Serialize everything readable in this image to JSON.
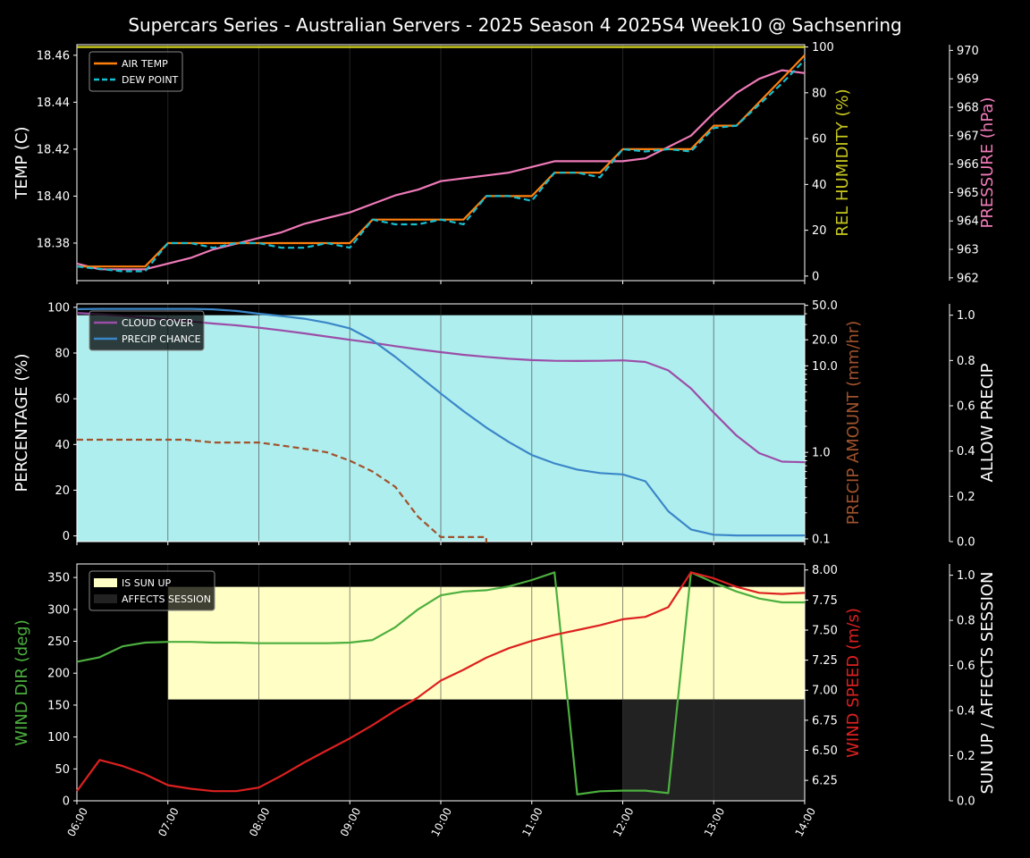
{
  "title": "Supercars Series - Australian Servers - 2025 Season 4 2025S4 Week10 @ Sachsenring",
  "x_ticks": [
    "06:00",
    "07:00",
    "08:00",
    "09:00",
    "10:00",
    "11:00",
    "12:00",
    "13:00",
    "14:00"
  ],
  "colors": {
    "air_temp": "#ff7f0e",
    "dew_point": "#17becf",
    "humidity_line": "#d4d41c",
    "humidity_label": "#c8c820",
    "pressure": "#f07ab8",
    "cloud_cover": "#9b4ea8",
    "precip_chance": "#3a86c8",
    "precip_amount": "#a0522d",
    "allow_precip_fill": "#afeeee",
    "sun_up_fill": "#ffffc5",
    "affects_fill": "#222222",
    "wind_dir": "#4caf3f",
    "wind_speed": "#dd2020"
  },
  "chart_data": [
    {
      "type": "line",
      "panel": "temperature",
      "ylabel": "TEMP (C)",
      "ylim": [
        18.364,
        18.4645
      ],
      "y_ticks": [
        "18.38",
        "18.40",
        "18.42",
        "18.44",
        "18.46"
      ],
      "right_axes": [
        {
          "label": "REL HUMIDITY (%)",
          "ylim": [
            -2,
            101
          ],
          "ticks": [
            "0",
            "20",
            "40",
            "60",
            "80",
            "100"
          ]
        },
        {
          "label": "PRESSURE (hPa)",
          "ylim": [
            961.9,
            970.2
          ],
          "ticks": [
            "962",
            "963",
            "964",
            "965",
            "966",
            "967",
            "968",
            "969",
            "970"
          ]
        }
      ],
      "legend": [
        "AIR TEMP",
        "DEW POINT"
      ],
      "legend_position": "top-left",
      "x_hours": [
        6.0,
        6.25,
        6.5,
        6.75,
        7.0,
        7.25,
        7.5,
        7.75,
        8.0,
        8.25,
        8.5,
        8.75,
        9.0,
        9.25,
        9.5,
        9.75,
        10.0,
        10.25,
        10.5,
        10.75,
        11.0,
        11.25,
        11.5,
        11.75,
        12.0,
        12.25,
        12.5,
        12.75,
        13.0,
        13.25,
        13.5,
        13.75,
        14.0
      ],
      "series": [
        {
          "name": "AIR TEMP",
          "values": [
            18.37,
            18.37,
            18.37,
            18.37,
            18.38,
            18.38,
            18.38,
            18.38,
            18.38,
            18.38,
            18.38,
            18.38,
            18.38,
            18.39,
            18.39,
            18.39,
            18.39,
            18.39,
            18.4,
            18.4,
            18.4,
            18.41,
            18.41,
            18.41,
            18.42,
            18.42,
            18.42,
            18.42,
            18.43,
            18.43,
            18.44,
            18.45,
            18.46
          ]
        },
        {
          "name": "DEW POINT",
          "values": [
            18.37,
            18.369,
            18.368,
            18.368,
            18.38,
            18.38,
            18.378,
            18.38,
            18.38,
            18.378,
            18.378,
            18.38,
            18.378,
            18.39,
            18.388,
            18.388,
            18.39,
            18.388,
            18.4,
            18.4,
            18.398,
            18.41,
            18.41,
            18.408,
            18.42,
            18.419,
            18.42,
            18.419,
            18.429,
            18.43,
            18.439,
            18.448,
            18.458
          ]
        },
        {
          "name": "REL HUMIDITY",
          "values": [
            100,
            100,
            100,
            100,
            100,
            100,
            100,
            100,
            100,
            100,
            100,
            100,
            100,
            100,
            100,
            100,
            100,
            100,
            100,
            100,
            100,
            100,
            100,
            100,
            100,
            100,
            100,
            100,
            100,
            100,
            100,
            100,
            100
          ]
        },
        {
          "name": "PRESSURE",
          "values": [
            962.5,
            962.3,
            962.3,
            962.3,
            962.5,
            962.7,
            963.0,
            963.2,
            963.4,
            963.6,
            963.9,
            964.1,
            964.3,
            964.6,
            964.9,
            965.1,
            965.4,
            965.5,
            965.6,
            965.7,
            965.9,
            966.1,
            966.1,
            966.1,
            966.1,
            966.2,
            966.6,
            967.0,
            967.8,
            968.5,
            969.0,
            969.3,
            969.2
          ]
        }
      ]
    },
    {
      "type": "line",
      "panel": "precipitation",
      "ylabel": "PERCENTAGE (%)",
      "ylim": [
        -2.5,
        101.5
      ],
      "y_ticks": [
        "0",
        "20",
        "40",
        "60",
        "80",
        "100"
      ],
      "right_axes": [
        {
          "label": "PRECIP AMOUNT (mm/hr)",
          "scale": "log",
          "ylim": [
            0.093,
            52
          ],
          "ticks": [
            "0.1",
            "1.0",
            "10.0",
            "20.0",
            "50.0"
          ]
        },
        {
          "label": "ALLOW PRECIP",
          "ylim": [
            0,
            1.05
          ],
          "ticks": [
            "0.0",
            "0.2",
            "0.4",
            "0.6",
            "0.8",
            "1.0"
          ]
        }
      ],
      "legend": [
        "CLOUD COVER",
        "PRECIP CHANCE"
      ],
      "legend_position": "top-left",
      "allow_precip": 1,
      "x_hours": [
        6.0,
        6.25,
        6.5,
        6.75,
        7.0,
        7.25,
        7.5,
        7.75,
        8.0,
        8.25,
        8.5,
        8.75,
        9.0,
        9.25,
        9.5,
        9.75,
        10.0,
        10.25,
        10.5,
        10.75,
        11.0,
        11.25,
        11.5,
        11.75,
        12.0,
        12.25,
        12.5,
        12.75,
        13.0,
        13.25,
        13.5,
        13.75,
        14.0
      ],
      "series": [
        {
          "name": "CLOUD COVER",
          "values": [
            97.5,
            97.0,
            96.3,
            95.5,
            94.7,
            93.8,
            92.9,
            92.1,
            91.1,
            89.9,
            88.6,
            87.2,
            85.8,
            84.5,
            83.0,
            81.6,
            80.4,
            79.2,
            78.3,
            77.5,
            76.9,
            76.6,
            76.5,
            76.6,
            76.8,
            76.1,
            72.4,
            64.5,
            53.9,
            43.9,
            36.2,
            32.5,
            32.2
          ]
        },
        {
          "name": "PRECIP CHANCE",
          "values": [
            99.2,
            99.3,
            99.3,
            99.3,
            99.3,
            99.3,
            99.1,
            98.4,
            97.2,
            96.2,
            95.0,
            93.2,
            90.8,
            85.5,
            78.3,
            70.3,
            62.3,
            54.6,
            47.4,
            41.0,
            35.4,
            31.7,
            29.0,
            27.5,
            26.9,
            23.9,
            10.8,
            2.8,
            0.5,
            0.2,
            0.2,
            0.2,
            0.2
          ]
        },
        {
          "name": "PRECIP AMOUNT",
          "x_hours": [
            6.0,
            6.25,
            6.5,
            6.75,
            7.0,
            7.2,
            7.5,
            7.75,
            8.0,
            8.25,
            8.5,
            8.75,
            9.0,
            9.25,
            9.5,
            9.75,
            10.0,
            10.25,
            10.5,
            10.5
          ],
          "values": [
            1.4,
            1.4,
            1.4,
            1.4,
            1.4,
            1.4,
            1.3,
            1.3,
            1.3,
            1.2,
            1.1,
            1.0,
            0.8,
            0.6,
            0.4,
            0.18,
            0.105,
            0.105,
            0.105,
            0.09
          ]
        }
      ]
    },
    {
      "type": "line",
      "panel": "wind",
      "ylabel": "WIND DIR (deg)",
      "ylim": [
        0,
        360
      ],
      "y_ticks": [
        "0",
        "50",
        "100",
        "150",
        "200",
        "250",
        "300",
        "350"
      ],
      "right_axes": [
        {
          "label": "WIND SPEED (m/s)",
          "ylim": [
            6.08,
            8.05
          ],
          "ticks": [
            "6.25",
            "6.50",
            "6.75",
            "7.00",
            "7.25",
            "7.50",
            "7.75",
            "8.00"
          ]
        },
        {
          "label": "SUN UP / AFFECTS SESSION",
          "ylim": [
            0,
            1.05
          ],
          "ticks": [
            "0.0",
            "0.2",
            "0.4",
            "0.6",
            "0.8",
            "1.0"
          ]
        }
      ],
      "legend": [
        "IS SUN UP",
        "AFFECTS SESSION"
      ],
      "legend_position": "top-left",
      "sun_up": {
        "from_hour": 7.0,
        "to_hour": 14.0,
        "value": 1
      },
      "affects_session": {
        "from_hour": 12.0,
        "to_hour": 14.0,
        "value": 1
      },
      "x_hours": [
        6.0,
        6.25,
        6.5,
        6.75,
        7.0,
        7.25,
        7.5,
        7.75,
        8.0,
        8.25,
        8.5,
        8.75,
        9.0,
        9.25,
        9.5,
        9.75,
        10.0,
        10.25,
        10.5,
        10.75,
        11.0,
        11.25,
        11.5,
        11.75,
        12.0,
        12.25,
        12.5,
        12.75,
        13.0,
        13.25,
        13.5,
        13.75,
        14.0
      ],
      "series": [
        {
          "name": "WIND DIR",
          "values": [
            218,
            225,
            242,
            248,
            249,
            249,
            248,
            248,
            247,
            247,
            247,
            247,
            248,
            252,
            272,
            300,
            322,
            328,
            330,
            336,
            346,
            358,
            10,
            15,
            16,
            16,
            12,
            358,
            342,
            328,
            317,
            311,
            311
          ]
        },
        {
          "name": "WIND SPEED",
          "values": [
            6.16,
            6.42,
            6.37,
            6.3,
            6.21,
            6.18,
            6.16,
            6.16,
            6.19,
            6.29,
            6.4,
            6.5,
            6.6,
            6.71,
            6.83,
            6.94,
            7.08,
            7.17,
            7.27,
            7.35,
            7.41,
            7.46,
            7.5,
            7.54,
            7.59,
            7.61,
            7.69,
            7.98,
            7.93,
            7.86,
            7.81,
            7.8,
            7.81
          ]
        }
      ]
    }
  ]
}
